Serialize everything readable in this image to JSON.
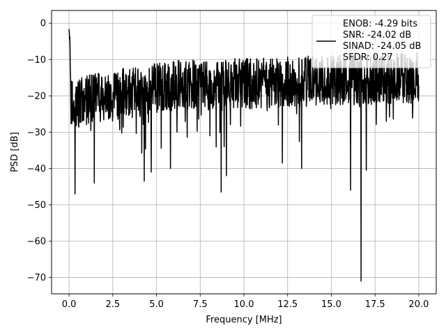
{
  "chart_data": {
    "type": "line",
    "title": "",
    "xlabel": "Frequency [MHz]",
    "ylabel": "PSD [dB]",
    "xlim": [
      -1.0,
      21.0
    ],
    "ylim": [
      -74.5,
      3.5
    ],
    "grid": true,
    "x_ticks": [
      0.0,
      2.5,
      5.0,
      7.5,
      10.0,
      12.5,
      15.0,
      17.5,
      20.0
    ],
    "x_tick_labels": [
      "0.0",
      "2.5",
      "5.0",
      "7.5",
      "10.0",
      "12.5",
      "15.0",
      "17.5",
      "20.0"
    ],
    "y_ticks": [
      0,
      -10,
      -20,
      -30,
      -40,
      -50,
      -60,
      -70
    ],
    "y_tick_labels": [
      "0",
      "−10",
      "−20",
      "−30",
      "−40",
      "−50",
      "−60",
      "−70"
    ],
    "legend": {
      "placement": "top-right",
      "entries": [
        "ENOB: -4.29 bits",
        "SNR: -24.02 dB",
        "SINAD: -24.05 dB",
        "SFDR: 0.27"
      ]
    },
    "series": [
      {
        "color": "#000000",
        "x_range": [
          0.0,
          20.0
        ],
        "spectrum_profile": {
          "peak": {
            "x": 0.0,
            "y": 0.0
          },
          "floor_near_dc": -22,
          "floor_mid": -17,
          "floor_high": -15,
          "spread": 10
        },
        "notable_dips": [
          {
            "x": 0.35,
            "y": -47
          },
          {
            "x": 1.45,
            "y": -44
          },
          {
            "x": 4.3,
            "y": -43.5
          },
          {
            "x": 4.7,
            "y": -41
          },
          {
            "x": 5.8,
            "y": -40
          },
          {
            "x": 8.7,
            "y": -46.5
          },
          {
            "x": 9.0,
            "y": -42
          },
          {
            "x": 12.2,
            "y": -38.5
          },
          {
            "x": 13.3,
            "y": -40
          },
          {
            "x": 16.1,
            "y": -46
          },
          {
            "x": 16.7,
            "y": -71
          },
          {
            "x": 17.0,
            "y": -40.5
          }
        ]
      }
    ]
  }
}
